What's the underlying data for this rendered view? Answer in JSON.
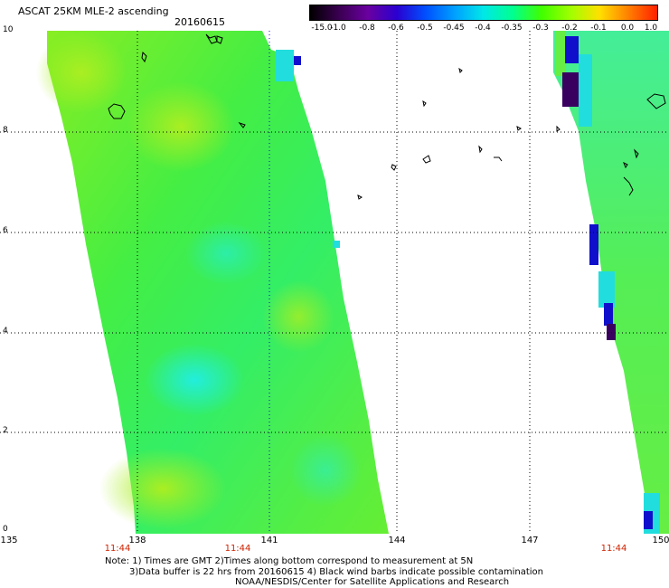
{
  "header": {
    "title": "ASCAT 25KM MLE-2 ascending",
    "date": "20160615"
  },
  "colorbar": {
    "labels": [
      "-15.0",
      "-1.0",
      "-0.8",
      "-0.6",
      "-0.5",
      "-0.45",
      "-0.4",
      "-0.35",
      "-0.3",
      "-0.2",
      "-0.1",
      "0.0",
      "1.0"
    ],
    "colors": [
      "#000000",
      "#3a0050",
      "#6a00a0",
      "#2a00d0",
      "#0050ff",
      "#00a0ff",
      "#00e8e8",
      "#00ff90",
      "#40ff00",
      "#a0ff00",
      "#ffe000",
      "#ff8000",
      "#ff2000"
    ]
  },
  "axes": {
    "y_ticks": [
      "10",
      "8",
      "6",
      "4",
      "2",
      "0"
    ],
    "x_ticks": [
      "135",
      "138",
      "141",
      "144",
      "147",
      "150"
    ]
  },
  "times": [
    "11:44",
    "11:44",
    "11:44"
  ],
  "notes": {
    "line1": "Note: 1) Times are GMT 2)Times along bottom correspond to measurement at 5N",
    "line2": "3)Data buffer is 22 hrs from 20160615 4) Black wind barbs indicate possible contamination",
    "line3": "NOAA/NESDIS/Center for Satellite Applications and Research"
  }
}
